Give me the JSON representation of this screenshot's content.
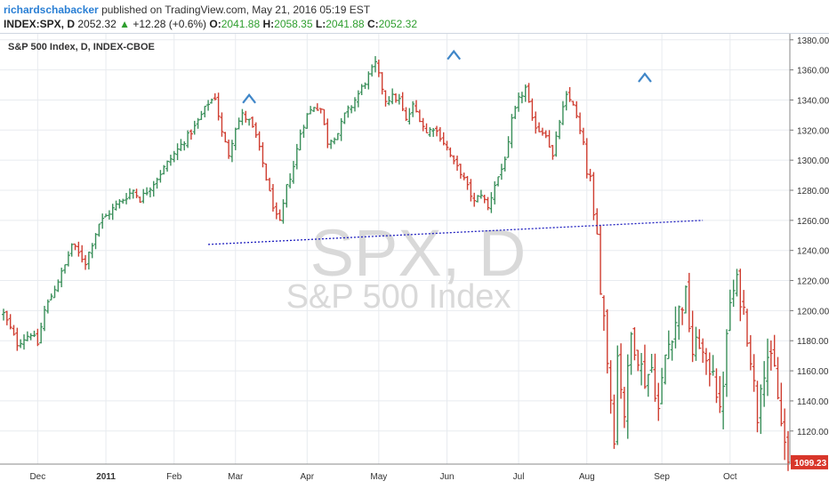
{
  "header": {
    "author": "richardschabacker",
    "published_text": "published on TradingView.com, May 21, 2016 05:19 EST",
    "symbol": "INDEX:SPX, D",
    "last": "2052.32",
    "change_arrow": "▲",
    "change": "+12.28 (+0.6%)",
    "o_label": "O:",
    "o_value": "2041.88",
    "h_label": "H:",
    "h_value": "2058.35",
    "l_label": "L:",
    "l_value": "2041.88",
    "c_label": "C:",
    "c_value": "2052.32"
  },
  "chart_data": {
    "type": "ohlc",
    "title": "S&P 500 Index, D, INDEX-CBOE",
    "watermark_symbol": "SPX, D",
    "watermark_name": "S&P 500 Index",
    "last_price_label": "1099.23",
    "ylim": [
      1098,
      1384
    ],
    "y_ticks": [
      1120,
      1140,
      1160,
      1180,
      1200,
      1220,
      1240,
      1260,
      1280,
      1300,
      1320,
      1340,
      1360,
      1380
    ],
    "x_ticks": [
      {
        "label": "Dec",
        "bar": 10
      },
      {
        "label": "2011",
        "bar": 30
      },
      {
        "label": "Feb",
        "bar": 50
      },
      {
        "label": "Mar",
        "bar": 68
      },
      {
        "label": "Apr",
        "bar": 89
      },
      {
        "label": "May",
        "bar": 110
      },
      {
        "label": "Jun",
        "bar": 130
      },
      {
        "label": "Jul",
        "bar": 151
      },
      {
        "label": "Aug",
        "bar": 171
      },
      {
        "label": "Sep",
        "bar": 193
      },
      {
        "label": "Oct",
        "bar": 213
      }
    ],
    "close_anchors": [
      [
        0,
        1198
      ],
      [
        4,
        1178
      ],
      [
        8,
        1185
      ],
      [
        10,
        1178
      ],
      [
        12,
        1200
      ],
      [
        18,
        1230
      ],
      [
        20,
        1244
      ],
      [
        24,
        1232
      ],
      [
        28,
        1258
      ],
      [
        33,
        1270
      ],
      [
        38,
        1280
      ],
      [
        40,
        1274
      ],
      [
        44,
        1285
      ],
      [
        48,
        1298
      ],
      [
        52,
        1310
      ],
      [
        56,
        1322
      ],
      [
        60,
        1338
      ],
      [
        62,
        1342
      ],
      [
        64,
        1318
      ],
      [
        66,
        1304
      ],
      [
        68,
        1322
      ],
      [
        70,
        1330
      ],
      [
        72,
        1326
      ],
      [
        74,
        1316
      ],
      [
        76,
        1298
      ],
      [
        78,
        1278
      ],
      [
        80,
        1262
      ],
      [
        81,
        1258
      ],
      [
        83,
        1282
      ],
      [
        85,
        1296
      ],
      [
        87,
        1318
      ],
      [
        89,
        1330
      ],
      [
        91,
        1336
      ],
      [
        93,
        1334
      ],
      [
        95,
        1312
      ],
      [
        98,
        1318
      ],
      [
        100,
        1330
      ],
      [
        102,
        1336
      ],
      [
        104,
        1344
      ],
      [
        107,
        1356
      ],
      [
        109,
        1364
      ],
      [
        110,
        1356
      ],
      [
        112,
        1340
      ],
      [
        114,
        1342
      ],
      [
        116,
        1340
      ],
      [
        118,
        1326
      ],
      [
        120,
        1336
      ],
      [
        122,
        1328
      ],
      [
        124,
        1318
      ],
      [
        126,
        1322
      ],
      [
        128,
        1316
      ],
      [
        130,
        1308
      ],
      [
        132,
        1298
      ],
      [
        134,
        1292
      ],
      [
        136,
        1282
      ],
      [
        138,
        1272
      ],
      [
        140,
        1278
      ],
      [
        142,
        1268
      ],
      [
        144,
        1284
      ],
      [
        146,
        1294
      ],
      [
        148,
        1310
      ],
      [
        149,
        1326
      ],
      [
        151,
        1340
      ],
      [
        153,
        1348
      ],
      [
        155,
        1326
      ],
      [
        157,
        1320
      ],
      [
        159,
        1318
      ],
      [
        161,
        1302
      ],
      [
        163,
        1326
      ],
      [
        165,
        1342
      ],
      [
        167,
        1338
      ],
      [
        168,
        1328
      ],
      [
        170,
        1310
      ],
      [
        171,
        1292
      ],
      [
        172,
        1288
      ],
      [
        173,
        1262
      ],
      [
        174,
        1250
      ],
      [
        175,
        1218
      ],
      [
        176,
        1196
      ],
      [
        177,
        1168
      ],
      [
        178,
        1142
      ],
      [
        179,
        1118
      ],
      [
        180,
        1170
      ],
      [
        182,
        1132
      ],
      [
        184,
        1184
      ],
      [
        186,
        1170
      ],
      [
        188,
        1154
      ],
      [
        190,
        1162
      ],
      [
        192,
        1134
      ],
      [
        194,
        1170
      ],
      [
        196,
        1186
      ],
      [
        198,
        1200
      ],
      [
        200,
        1210
      ],
      [
        202,
        1172
      ],
      [
        204,
        1180
      ],
      [
        206,
        1160
      ],
      [
        208,
        1164
      ],
      [
        210,
        1130
      ],
      [
        211,
        1154
      ],
      [
        213,
        1206
      ],
      [
        215,
        1218
      ],
      [
        217,
        1200
      ],
      [
        219,
        1170
      ],
      [
        221,
        1130
      ],
      [
        222,
        1154
      ],
      [
        224,
        1170
      ],
      [
        226,
        1160
      ],
      [
        228,
        1124
      ],
      [
        230,
        1099.23
      ]
    ],
    "neckline": {
      "from": {
        "bar": 60,
        "price": 1244
      },
      "to": {
        "bar": 205,
        "price": 1260
      }
    },
    "peak_markers": [
      {
        "bar": 72,
        "price": 1341
      },
      {
        "bar": 132,
        "price": 1370
      },
      {
        "bar": 188,
        "price": 1355
      }
    ],
    "colors": {
      "up": "#3a8f5a",
      "down": "#cf3d30",
      "neckline": "#1f1fbf",
      "marker": "#3f86c8",
      "grid": "#e8ebef",
      "watermark": "#d9d9d9",
      "last_price_bg": "#d8362a"
    }
  }
}
